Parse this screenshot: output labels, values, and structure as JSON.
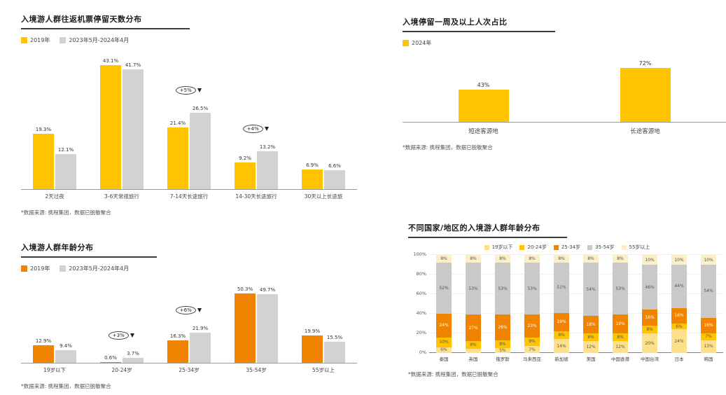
{
  "page": {
    "background": "#ffffff"
  },
  "chart_data": [
    {
      "id": "stay_days",
      "type": "bar",
      "title": "入境游人群往返机票停留天数分布",
      "categories": [
        "2天过夜",
        "3-6天常规旅行",
        "7-14天长途旅行",
        "14-30天长途旅行",
        "30天以上长途旅"
      ],
      "series": [
        {
          "name": "2019年",
          "color": "#FFC300",
          "values": [
            19.3,
            43.1,
            21.4,
            9.2,
            6.9
          ]
        },
        {
          "name": "2023年5月-2024年4月",
          "color": "#D2D2D2",
          "values": [
            12.1,
            41.7,
            26.5,
            13.2,
            6.6
          ]
        }
      ],
      "annotations": [
        {
          "label": "+5%",
          "category_index": 2
        },
        {
          "label": "+4%",
          "category_index": 3
        }
      ],
      "value_suffix": "%",
      "ylim": [
        0,
        45
      ],
      "legend_position": "top-left",
      "source": "*数据来源: 携程集团，数据已脱敏聚合"
    },
    {
      "id": "week_plus",
      "type": "bar",
      "title": "入境停留一周及以上人次占比",
      "categories": [
        "短途客源地",
        "长途客源地"
      ],
      "series": [
        {
          "name": "2024年",
          "color": "#FFC300",
          "values": [
            43,
            72
          ]
        }
      ],
      "value_suffix": "%",
      "ylim": [
        0,
        80
      ],
      "legend_position": "top-left",
      "source": "*数据来源: 携程集团，数据已脱敏聚合"
    },
    {
      "id": "age_dist",
      "type": "bar",
      "title": "入境游人群年龄分布",
      "categories": [
        "19岁以下",
        "20-24岁",
        "25-34岁",
        "35-54岁",
        "55岁以上"
      ],
      "series": [
        {
          "name": "2019年",
          "color": "#F08300",
          "values": [
            12.9,
            0.6,
            16.3,
            50.3,
            19.9
          ]
        },
        {
          "name": "2023年5月-2024年4月",
          "color": "#D2D2D2",
          "values": [
            9.4,
            3.7,
            21.9,
            49.7,
            15.5
          ]
        }
      ],
      "annotations": [
        {
          "label": "+3%",
          "category_index": 1
        },
        {
          "label": "+6%",
          "category_index": 2
        }
      ],
      "value_suffix": "%",
      "ylim": [
        0,
        55
      ],
      "legend_position": "top-left",
      "source": "*数据来源: 携程集团，数据已脱敏聚合"
    },
    {
      "id": "age_by_country",
      "type": "bar",
      "stacked": true,
      "title": "不同国家/地区的入境游人群年龄分布",
      "categories": [
        "泰国",
        "英国",
        "俄罗斯",
        "马来西亚",
        "新加坡",
        "美国",
        "中国香港",
        "中国台湾",
        "日本",
        "韩国"
      ],
      "series": [
        {
          "name": "19岁以下",
          "color": "#FFE08A",
          "label_color": "#555",
          "values": [
            6,
            4,
            5,
            7,
            14,
            12,
            12,
            20,
            24,
            13
          ]
        },
        {
          "name": "20-24岁",
          "color": "#FFC300",
          "label_color": "#555",
          "values": [
            10,
            8,
            8,
            9,
            8,
            8,
            8,
            8,
            6,
            7
          ]
        },
        {
          "name": "25-34岁",
          "color": "#F08300",
          "label_color": "#ffffff",
          "values": [
            24,
            27,
            26,
            23,
            19,
            18,
            19,
            16,
            16,
            16
          ]
        },
        {
          "name": "35-54岁",
          "color": "#C9C9C9",
          "label_color": "#555",
          "values": [
            52,
            53,
            53,
            53,
            51,
            54,
            53,
            46,
            44,
            54
          ]
        },
        {
          "name": "55岁以上",
          "color": "#FAEFC8",
          "label_color": "#555",
          "values": [
            8,
            8,
            8,
            8,
            8,
            8,
            8,
            10,
            10,
            10
          ]
        }
      ],
      "y_ticks": [
        "0%",
        "20%",
        "40%",
        "60%",
        "80%",
        "100%"
      ],
      "ylim": [
        0,
        100
      ],
      "value_suffix": "%",
      "legend_position": "top-center",
      "source": "*数据来源: 携程集团，数据已脱敏聚合"
    }
  ]
}
